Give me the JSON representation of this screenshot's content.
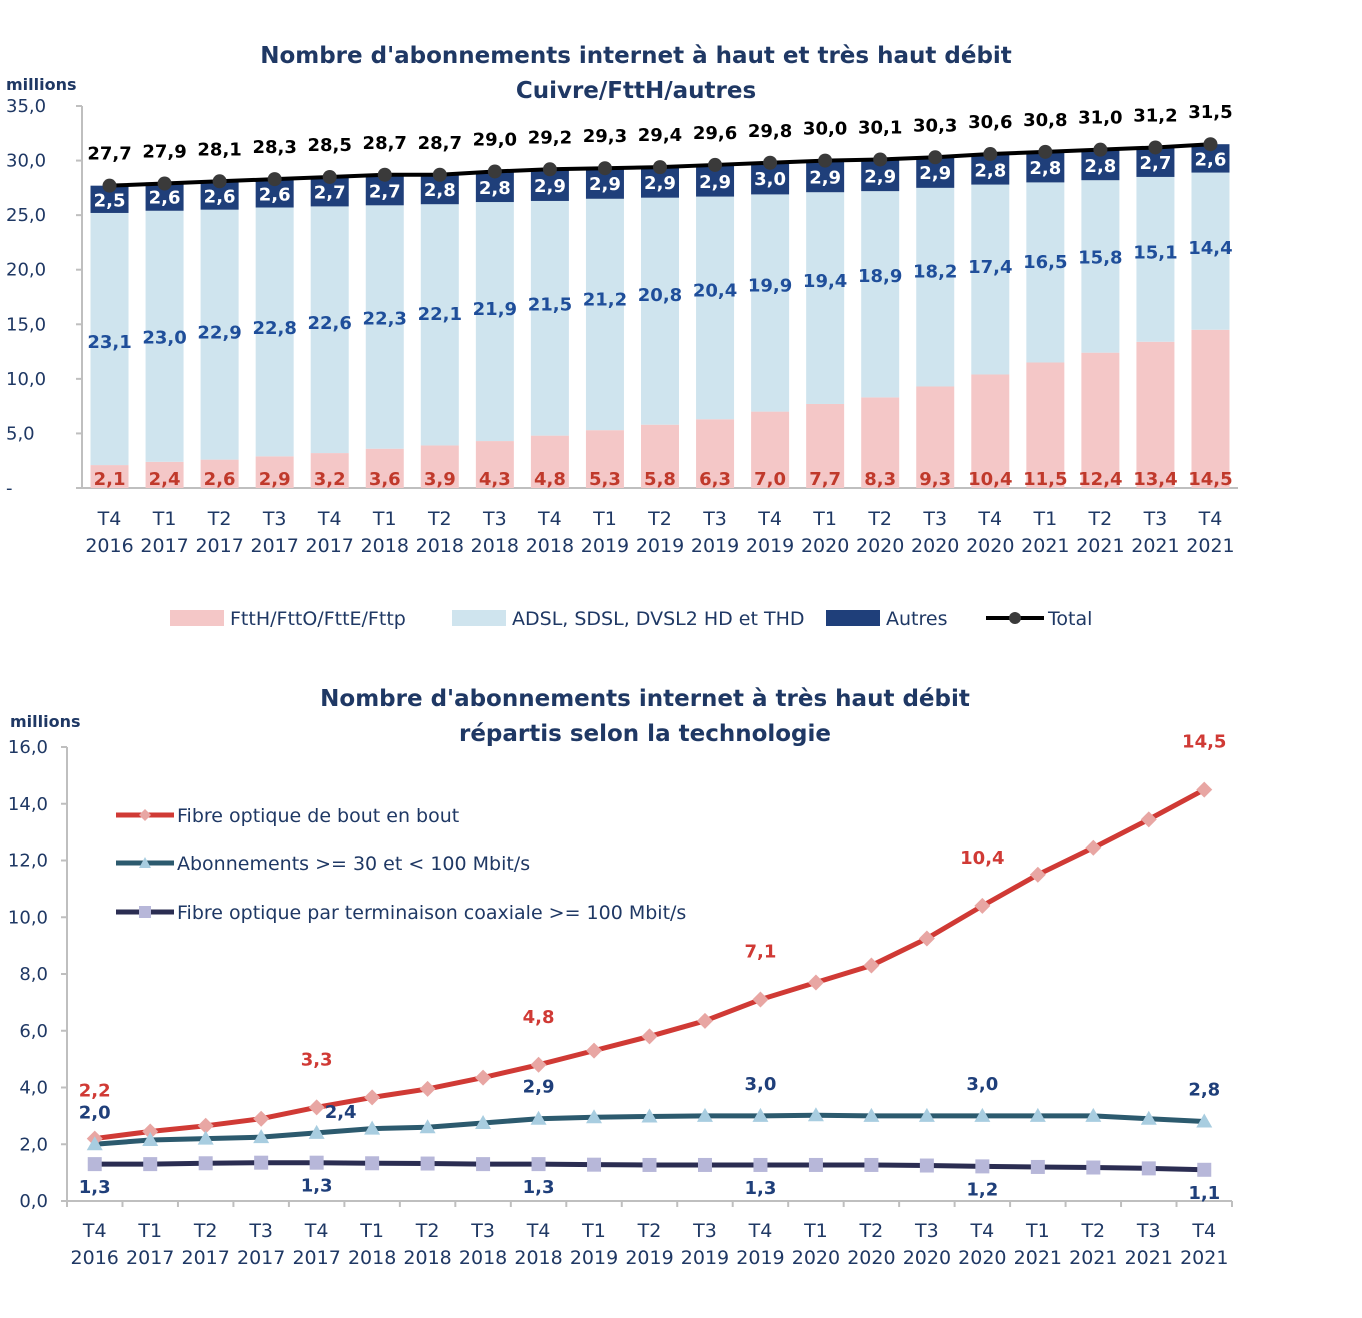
{
  "chart_data": [
    {
      "type": "bar",
      "stacked": true,
      "title": "Nombre d'abonnements internet à haut et très haut débit",
      "subtitle": "Cuivre/FttH/autres",
      "ylabel": "millions",
      "ylim": [
        0,
        35
      ],
      "yticks": [
        "-",
        "5,0",
        "10,0",
        "15,0",
        "20,0",
        "25,0",
        "30,0",
        "35,0"
      ],
      "grid": false,
      "legend_position": "bottom",
      "categories": [
        [
          "T4",
          "2016"
        ],
        [
          "T1",
          "2017"
        ],
        [
          "T2",
          "2017"
        ],
        [
          "T3",
          "2017"
        ],
        [
          "T4",
          "2017"
        ],
        [
          "T1",
          "2018"
        ],
        [
          "T2",
          "2018"
        ],
        [
          "T3",
          "2018"
        ],
        [
          "T4",
          "2018"
        ],
        [
          "T1",
          "2019"
        ],
        [
          "T2",
          "2019"
        ],
        [
          "T3",
          "2019"
        ],
        [
          "T4",
          "2019"
        ],
        [
          "T1",
          "2020"
        ],
        [
          "T2",
          "2020"
        ],
        [
          "T3",
          "2020"
        ],
        [
          "T4",
          "2020"
        ],
        [
          "T1",
          "2021"
        ],
        [
          "T2",
          "2021"
        ],
        [
          "T3",
          "2021"
        ],
        [
          "T4",
          "2021"
        ]
      ],
      "series": [
        {
          "name": "FttH/FttO/FttE/Fttp",
          "color": "#f4c7c7",
          "label_color": "#c0392b",
          "values": [
            2.1,
            2.4,
            2.6,
            2.9,
            3.2,
            3.6,
            3.9,
            4.3,
            4.8,
            5.3,
            5.8,
            6.3,
            7.0,
            7.7,
            8.3,
            9.3,
            10.4,
            11.5,
            12.4,
            13.4,
            14.5
          ],
          "labels": [
            "2,1",
            "2,4",
            "2,6",
            "2,9",
            "3,2",
            "3,6",
            "3,9",
            "4,3",
            "4,8",
            "5,3",
            "5,8",
            "6,3",
            "7,0",
            "7,7",
            "8,3",
            "9,3",
            "10,4",
            "11,5",
            "12,4",
            "13,4",
            "14,5"
          ]
        },
        {
          "name": "ADSL, SDSL, DVSL2 HD et THD",
          "color": "#cfe4ee",
          "label_color": "#1f4e9a",
          "values": [
            23.1,
            23.0,
            22.9,
            22.8,
            22.6,
            22.3,
            22.1,
            21.9,
            21.5,
            21.2,
            20.8,
            20.4,
            19.9,
            19.4,
            18.9,
            18.2,
            17.4,
            16.5,
            15.8,
            15.1,
            14.4
          ],
          "labels": [
            "23,1",
            "23,0",
            "22,9",
            "22,8",
            "22,6",
            "22,3",
            "22,1",
            "21,9",
            "21,5",
            "21,2",
            "20,8",
            "20,4",
            "19,9",
            "19,4",
            "18,9",
            "18,2",
            "17,4",
            "16,5",
            "15,8",
            "15,1",
            "14,4"
          ]
        },
        {
          "name": "Autres",
          "color": "#1f3f7a",
          "label_color": "#ffffff",
          "values": [
            2.5,
            2.6,
            2.6,
            2.6,
            2.7,
            2.7,
            2.8,
            2.8,
            2.9,
            2.9,
            2.9,
            2.9,
            3.0,
            2.9,
            2.9,
            2.9,
            2.8,
            2.8,
            2.8,
            2.7,
            2.6
          ],
          "labels": [
            "2,5",
            "2,6",
            "2,6",
            "2,6",
            "2,7",
            "2,7",
            "2,8",
            "2,8",
            "2,9",
            "2,9",
            "2,9",
            "2,9",
            "3,0",
            "2,9",
            "2,9",
            "2,9",
            "2,8",
            "2,8",
            "2,8",
            "2,7",
            "2,6"
          ]
        },
        {
          "name": "Total",
          "type": "line",
          "color": "#000000",
          "values": [
            27.7,
            27.9,
            28.1,
            28.3,
            28.5,
            28.7,
            28.7,
            29.0,
            29.2,
            29.3,
            29.4,
            29.6,
            29.8,
            30.0,
            30.1,
            30.3,
            30.6,
            30.8,
            31.0,
            31.2,
            31.5
          ],
          "labels": [
            "27,7",
            "27,9",
            "28,1",
            "28,3",
            "28,5",
            "28,7",
            "28,7",
            "29,0",
            "29,2",
            "29,3",
            "29,4",
            "29,6",
            "29,8",
            "30,0",
            "30,1",
            "30,3",
            "30,6",
            "30,8",
            "31,0",
            "31,2",
            "31,5"
          ]
        }
      ]
    },
    {
      "type": "line",
      "title": "Nombre d'abonnements internet à très haut débit",
      "subtitle": "répartis selon la technologie",
      "ylabel": "millions",
      "ylim": [
        0,
        16
      ],
      "yticks": [
        "0,0",
        "2,0",
        "4,0",
        "6,0",
        "8,0",
        "10,0",
        "12,0",
        "14,0",
        "16,0"
      ],
      "grid": false,
      "legend_position": "top-left",
      "categories": [
        [
          "T4",
          "2016"
        ],
        [
          "T1",
          "2017"
        ],
        [
          "T2",
          "2017"
        ],
        [
          "T3",
          "2017"
        ],
        [
          "T4",
          "2017"
        ],
        [
          "T1",
          "2018"
        ],
        [
          "T2",
          "2018"
        ],
        [
          "T3",
          "2018"
        ],
        [
          "T4",
          "2018"
        ],
        [
          "T1",
          "2019"
        ],
        [
          "T2",
          "2019"
        ],
        [
          "T3",
          "2019"
        ],
        [
          "T4",
          "2019"
        ],
        [
          "T1",
          "2020"
        ],
        [
          "T2",
          "2020"
        ],
        [
          "T3",
          "2020"
        ],
        [
          "T4",
          "2020"
        ],
        [
          "T1",
          "2021"
        ],
        [
          "T2",
          "2021"
        ],
        [
          "T3",
          "2021"
        ],
        [
          "T4",
          "2021"
        ]
      ],
      "series": [
        {
          "name": "Fibre optique de bout en bout",
          "color": "#d03a35",
          "marker": "diamond",
          "marker_color": "#e8a6a3",
          "label_color": "#d03a35",
          "values": [
            2.2,
            2.45,
            2.65,
            2.9,
            3.3,
            3.65,
            3.95,
            4.35,
            4.8,
            5.3,
            5.8,
            6.35,
            7.1,
            7.7,
            8.3,
            9.25,
            10.4,
            11.5,
            12.45,
            13.45,
            14.5
          ],
          "labels": [
            "2,2",
            "",
            "",
            "",
            "3,3",
            "",
            "",
            "",
            "4,8",
            "",
            "",
            "",
            "7,1",
            "",
            "",
            "",
            "10,4",
            "",
            "",
            "",
            "14,5"
          ]
        },
        {
          "name": "Abonnements >= 30 et < 100 Mbit/s",
          "color": "#2c5a6e",
          "marker": "triangle",
          "marker_color": "#a8cde0",
          "label_color": "#1f3f7a",
          "values": [
            2.0,
            2.15,
            2.2,
            2.25,
            2.4,
            2.55,
            2.6,
            2.75,
            2.9,
            2.95,
            2.98,
            3.0,
            3.0,
            3.02,
            3.0,
            3.0,
            3.0,
            3.0,
            3.0,
            2.9,
            2.8
          ],
          "labels": [
            "2,0",
            "",
            "",
            "",
            "2,4",
            "",
            "",
            "",
            "2,9",
            "",
            "",
            "",
            "3,0",
            "",
            "",
            "",
            "3,0",
            "",
            "",
            "",
            "2,8"
          ]
        },
        {
          "name": "Fibre optique par terminaison coaxiale >= 100 Mbit/s",
          "color": "#2b2d52",
          "marker": "square",
          "marker_color": "#b7b7d9",
          "label_color": "#1f3f7a",
          "values": [
            1.3,
            1.3,
            1.33,
            1.35,
            1.35,
            1.33,
            1.32,
            1.3,
            1.3,
            1.28,
            1.27,
            1.27,
            1.27,
            1.27,
            1.27,
            1.25,
            1.22,
            1.2,
            1.18,
            1.15,
            1.1
          ],
          "labels": [
            "1,3",
            "",
            "",
            "",
            "1,3",
            "",
            "",
            "",
            "1,3",
            "",
            "",
            "",
            "1,3",
            "",
            "",
            "",
            "1,2",
            "",
            "",
            "",
            "1,1"
          ]
        }
      ]
    }
  ]
}
